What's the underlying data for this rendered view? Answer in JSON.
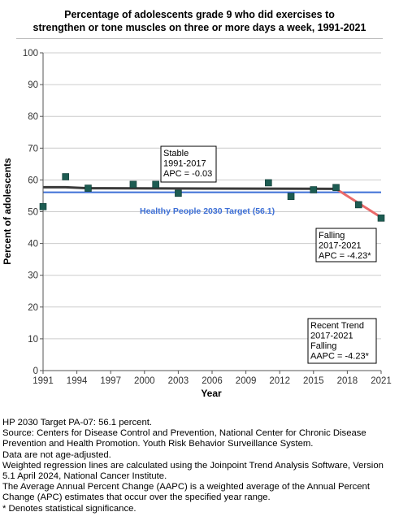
{
  "chart_data": {
    "type": "scatter",
    "title_lines": [
      "Percentage of adolescents grade 9 who did exercises to",
      "strengthen or tone muscles on three or more days a week, 1991-2021"
    ],
    "xlabel": "Year",
    "ylabel": "Percent of adolescents",
    "xlim": [
      1991,
      2021
    ],
    "ylim": [
      0,
      100
    ],
    "x_ticks": [
      1991,
      1994,
      1997,
      2000,
      2003,
      2006,
      2009,
      2012,
      2015,
      2018,
      2021
    ],
    "y_ticks": [
      0,
      10,
      20,
      30,
      40,
      50,
      60,
      70,
      80,
      90,
      100
    ],
    "grid": "horizontal",
    "points": [
      {
        "x": 1991,
        "y": 51.6
      },
      {
        "x": 1993,
        "y": 61.0
      },
      {
        "x": 1995,
        "y": 57.4
      },
      {
        "x": 1999,
        "y": 58.6
      },
      {
        "x": 2001,
        "y": 58.6
      },
      {
        "x": 2003,
        "y": 55.8
      },
      {
        "x": 2011,
        "y": 59.1
      },
      {
        "x": 2013,
        "y": 54.8
      },
      {
        "x": 2015,
        "y": 56.9
      },
      {
        "x": 2017,
        "y": 57.6
      },
      {
        "x": 2019,
        "y": 52.2
      },
      {
        "x": 2021,
        "y": 48.0
      }
    ],
    "trend_segments": [
      {
        "x": [
          1991,
          1993,
          1995,
          2017
        ],
        "y": [
          57.7,
          57.7,
          57.4,
          57.2
        ],
        "color": "#3a3a3a"
      },
      {
        "x": [
          2017,
          2021
        ],
        "y": [
          57.2,
          48.2
        ],
        "color": "#ea6a6a"
      }
    ],
    "target": {
      "value": 56.1,
      "label": "Healthy People 2030 Target (56.1)",
      "color": "#3d6fd6"
    },
    "annotations": [
      {
        "lines": [
          "Stable",
          "1991-2017",
          "APC = -0.03"
        ]
      },
      {
        "lines": [
          "Falling",
          "2017-2021",
          "APC = -4.23*"
        ]
      },
      {
        "lines": [
          "Recent Trend",
          "2017-2021",
          "Falling",
          "AAPC = -4.23*"
        ]
      }
    ],
    "colors": {
      "marker": "#1d5c52",
      "marker_edge": "#0f3a34",
      "axis": "#555555",
      "grid": "#cccccc"
    }
  },
  "notes": [
    "HP 2030 Target PA-07: 56.1 percent.",
    "Source: Centers for Disease Control and Prevention, National Center for Chronic Disease Prevention and Health Promotion. Youth Risk Behavior Surveillance System.",
    "Data are not age-adjusted.",
    "Weighted regression lines are calculated using the Joinpoint Trend Analysis Software, Version 5.1 April 2024, National Cancer Institute.",
    "The Average Annual Percent Change (AAPC) is a weighted average of the Annual Percent Change (APC) estimates that occur over the specified year range.",
    "* Denotes statistical significance."
  ]
}
